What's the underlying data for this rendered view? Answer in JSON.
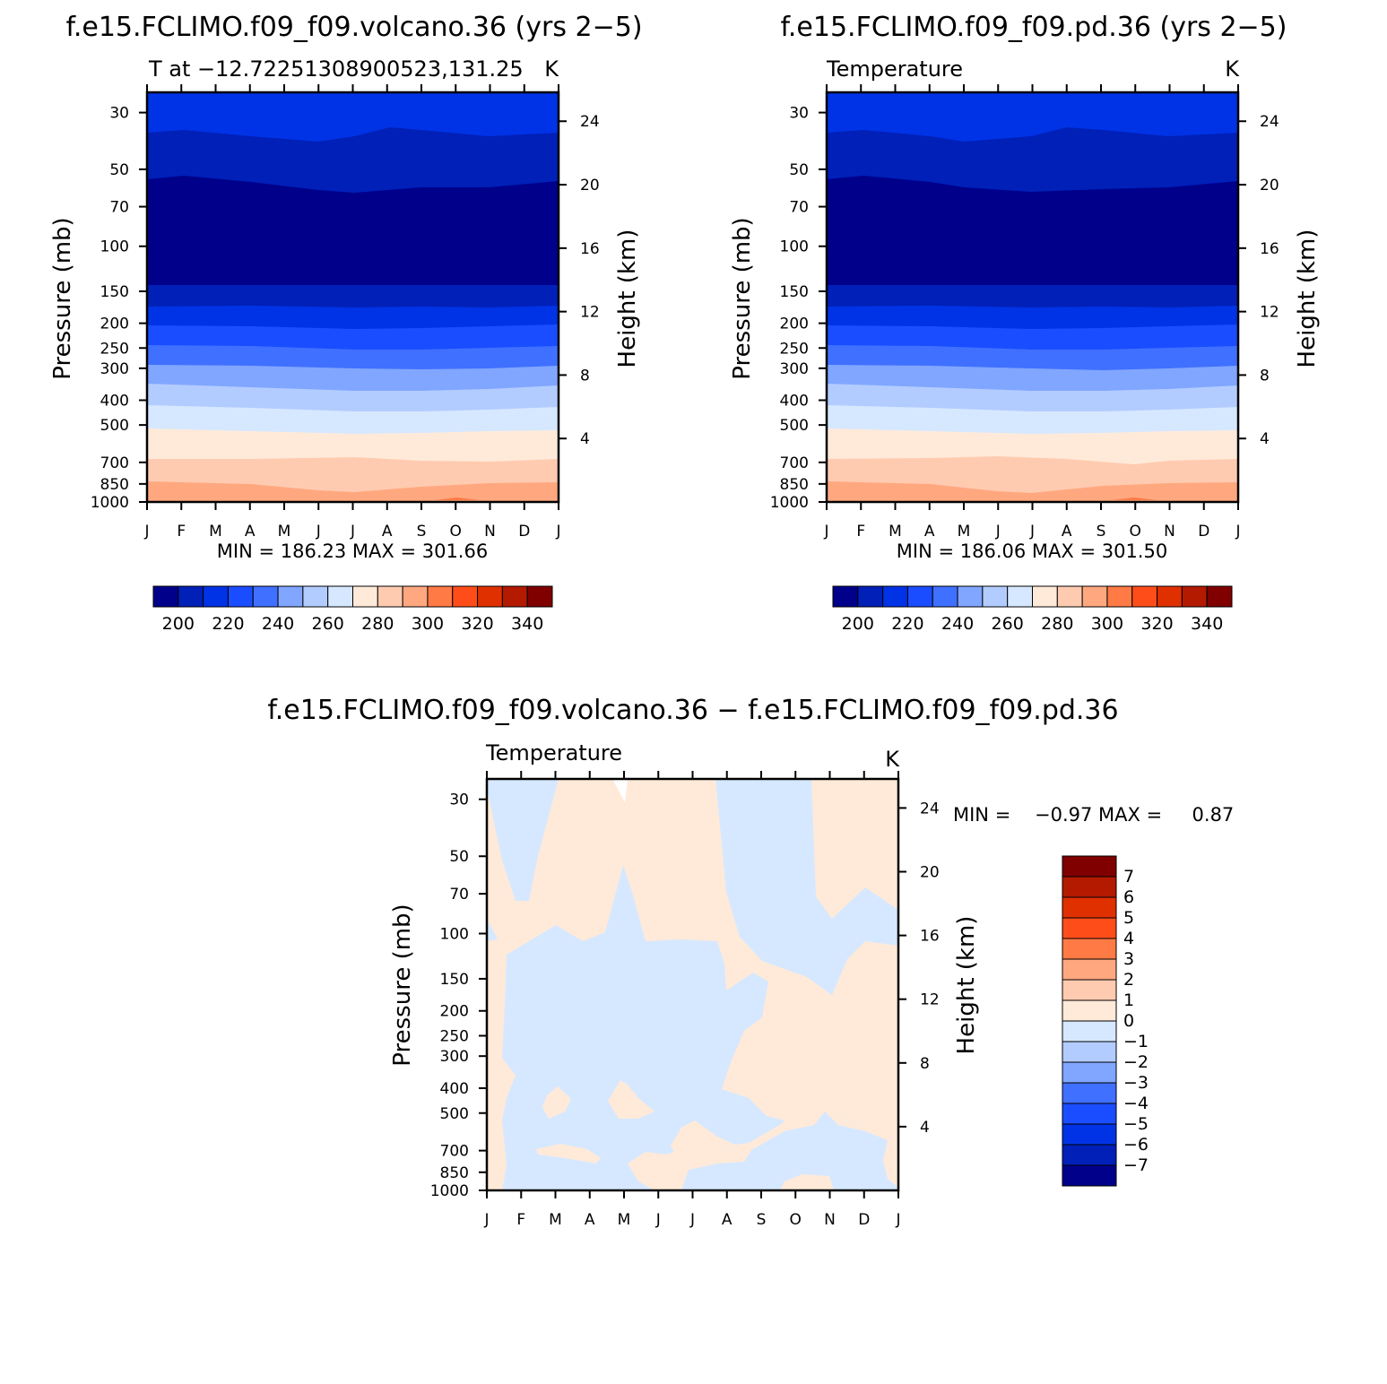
{
  "chart_data": [
    {
      "type": "heatmap",
      "title": "f.e15.FCLIMO.f09_f09.volcano.36 (yrs 2−5)",
      "subtitle_left": "T at −12.72251308900523,131.25",
      "subtitle_right": "K",
      "ylabel": "Pressure (mb)",
      "ylabel_right": "Height (km)",
      "minmax": "MIN = 186.23 MAX = 301.66",
      "x_ticks": [
        "J",
        "F",
        "M",
        "A",
        "M",
        "J",
        "J",
        "A",
        "S",
        "O",
        "N",
        "D",
        "J"
      ],
      "y_ticks": [
        30,
        50,
        70,
        100,
        150,
        200,
        250,
        300,
        400,
        500,
        700,
        850,
        1000
      ],
      "y_right_ticks": [
        24,
        20,
        16,
        12,
        8,
        4
      ],
      "ylim": [
        1000,
        25
      ],
      "y_scale": "log",
      "legend_placement": "bottom",
      "colorbar": {
        "orientation": "horizontal",
        "colors": [
          "#00008b",
          "#0020b8",
          "#0033e6",
          "#1a4dff",
          "#4070ff",
          "#80a6ff",
          "#b3ccff",
          "#d6e8ff",
          "#ffead9",
          "#ffcbb0",
          "#ffa880",
          "#ff7a45",
          "#ff4d1a",
          "#e03000",
          "#b31a00",
          "#800000"
        ],
        "labels": [
          "200",
          "220",
          "240",
          "260",
          "280",
          "300",
          "320",
          "340"
        ]
      }
    },
    {
      "type": "heatmap",
      "title": "f.e15.FCLIMO.f09_f09.pd.36 (yrs 2−5)",
      "subtitle_left": "Temperature",
      "subtitle_right": "K",
      "ylabel": "Pressure (mb)",
      "ylabel_right": "Height (km)",
      "minmax": "MIN = 186.06 MAX = 301.50",
      "x_ticks": [
        "J",
        "F",
        "M",
        "A",
        "M",
        "J",
        "J",
        "A",
        "S",
        "O",
        "N",
        "D",
        "J"
      ],
      "y_ticks": [
        30,
        50,
        70,
        100,
        150,
        200,
        250,
        300,
        400,
        500,
        700,
        850,
        1000
      ],
      "y_right_ticks": [
        24,
        20,
        16,
        12,
        8,
        4
      ],
      "ylim": [
        1000,
        25
      ],
      "y_scale": "log",
      "legend_placement": "bottom",
      "colorbar": {
        "orientation": "horizontal",
        "colors": [
          "#00008b",
          "#0020b8",
          "#0033e6",
          "#1a4dff",
          "#4070ff",
          "#80a6ff",
          "#b3ccff",
          "#d6e8ff",
          "#ffead9",
          "#ffcbb0",
          "#ffa880",
          "#ff7a45",
          "#ff4d1a",
          "#e03000",
          "#b31a00",
          "#800000"
        ],
        "labels": [
          "200",
          "220",
          "240",
          "260",
          "280",
          "300",
          "320",
          "340"
        ]
      }
    },
    {
      "type": "heatmap",
      "title": "f.e15.FCLIMO.f09_f09.volcano.36 − f.e15.FCLIMO.f09_f09.pd.36",
      "subtitle_left": "Temperature",
      "subtitle_right": "K",
      "ylabel": "Pressure (mb)",
      "ylabel_right": "Height (km)",
      "minmax": "MIN =    −0.97 MAX =     0.87",
      "x_ticks": [
        "J",
        "F",
        "M",
        "A",
        "M",
        "J",
        "J",
        "A",
        "S",
        "O",
        "N",
        "D",
        "J"
      ],
      "y_ticks": [
        30,
        50,
        70,
        100,
        150,
        200,
        250,
        300,
        400,
        500,
        700,
        850,
        1000
      ],
      "y_right_ticks": [
        24,
        20,
        16,
        12,
        8,
        4
      ],
      "ylim": [
        1000,
        25
      ],
      "y_scale": "log",
      "legend_placement": "right",
      "colorbar": {
        "orientation": "vertical",
        "colors": [
          "#00008b",
          "#0020b8",
          "#0033e6",
          "#1a4dff",
          "#4070ff",
          "#80a6ff",
          "#b3ccff",
          "#d6e8ff",
          "#ffead9",
          "#ffcbb0",
          "#ffa880",
          "#ff7a45",
          "#ff4d1a",
          "#e03000",
          "#b31a00",
          "#800000"
        ],
        "labels": [
          "−7",
          "−6",
          "−5",
          "−4",
          "−3",
          "−2",
          "−1",
          "0",
          "1",
          "2",
          "3",
          "4",
          "5",
          "6",
          "7"
        ]
      }
    }
  ]
}
